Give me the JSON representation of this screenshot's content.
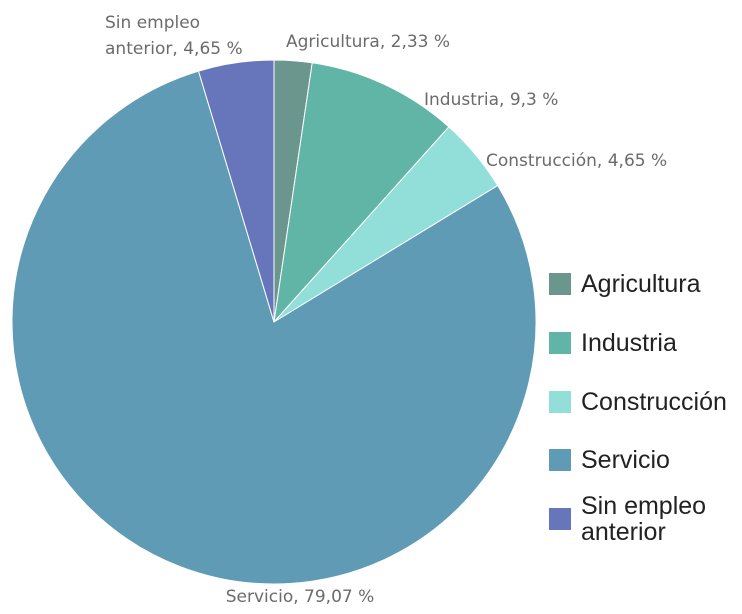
{
  "chart_data": {
    "type": "pie",
    "categories": [
      "Agricultura",
      "Industria",
      "Construcción",
      "Servicio",
      "Sin empleo anterior"
    ],
    "values": [
      2.33,
      9.3,
      4.65,
      79.07,
      4.65
    ],
    "colors": [
      "#6b968e",
      "#61b5a6",
      "#92ded9",
      "#5f9bb5",
      "#6776bb"
    ],
    "data_labels": [
      [
        "Agricultura, 2,33 %"
      ],
      [
        "Industria, 9,3 %"
      ],
      [
        "Construcción, 4,65 %"
      ],
      [
        "Servicio, 79,07 %"
      ],
      [
        "Sin empleo",
        "anterior, 4,65 %"
      ]
    ],
    "legend": {
      "position": "right",
      "entries": [
        [
          "Agricultura"
        ],
        [
          "Industria"
        ],
        [
          "Construcción"
        ],
        [
          "Servicio"
        ],
        [
          "Sin empleo",
          "anterior"
        ]
      ]
    },
    "start_angle": "12 o'clock",
    "direction": "clockwise"
  }
}
